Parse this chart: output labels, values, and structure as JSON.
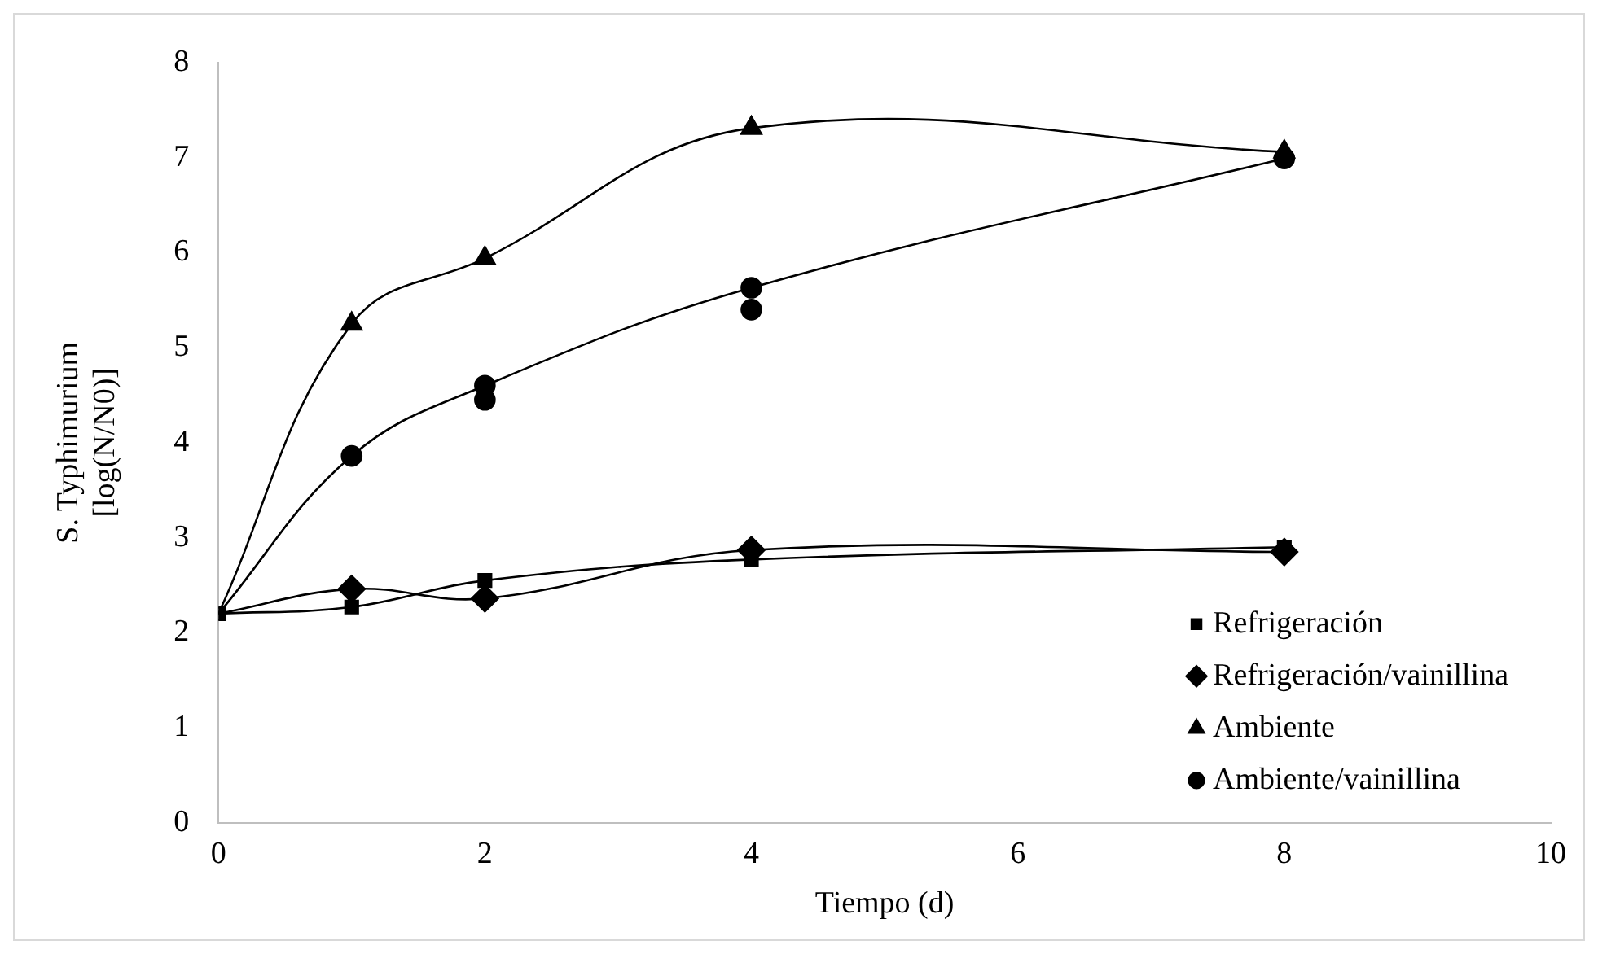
{
  "chart_data": {
    "type": "line",
    "xlabel": "Tiempo (d)",
    "ylabel": "S. Typhimurium\n[log(N/N0)]",
    "x": [
      0,
      1,
      2,
      4,
      8
    ],
    "series": [
      {
        "name": "Refrigeración",
        "color": "#000000",
        "marker": "square",
        "values": [
          2.2,
          2.27,
          2.55,
          2.77,
          2.9
        ]
      },
      {
        "name": "Refrigeración/vainillina",
        "color": "#000000",
        "marker": "diamond",
        "values": [
          2.2,
          2.46,
          2.36,
          2.87,
          2.85
        ]
      },
      {
        "name": "Ambiente",
        "color": "#000000",
        "marker": "triangle",
        "values": [
          2.2,
          5.25,
          5.94,
          7.31,
          7.06
        ]
      },
      {
        "name": "Ambiente/vainillina",
        "color": "#000000",
        "marker": "circle",
        "values": [
          2.2,
          3.86,
          4.6,
          5.63,
          6.99
        ]
      },
      {
        "type": "scatter",
        "color": "#000000",
        "marker": "circle",
        "x": [
          2,
          4
        ],
        "values": [
          4.45,
          5.4
        ]
      }
    ],
    "xlim": [
      0,
      10
    ],
    "xticks": [
      0,
      2,
      4,
      6,
      8,
      10
    ],
    "ylim": [
      0,
      8
    ],
    "yticks": [
      0,
      1,
      2,
      3,
      4,
      5,
      6,
      7,
      8
    ],
    "grid": false,
    "legend": "bottom right"
  }
}
